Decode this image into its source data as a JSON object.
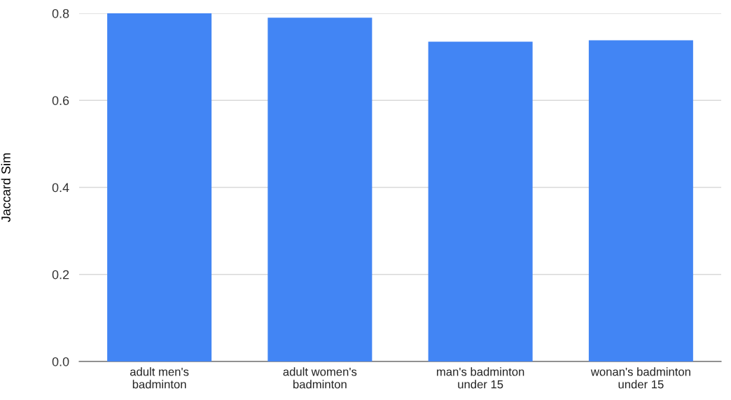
{
  "chart_data": {
    "type": "bar",
    "ylabel": "Jaccard Sim",
    "categories": [
      "adult men's\nbadminton",
      "adult women's\nbadminton",
      "man's badminton\nunder 15",
      "wonan's badminton\nunder 15"
    ],
    "values": [
      0.8,
      0.79,
      0.735,
      0.738
    ],
    "color": "#4285f4",
    "ylim": [
      0,
      0.8
    ],
    "yticks": [
      {
        "value": 0,
        "label": "0.0"
      },
      {
        "value": 0.2,
        "label": "0.2"
      },
      {
        "value": 0.4,
        "label": "0.4"
      },
      {
        "value": 0.6,
        "label": "0.6"
      },
      {
        "value": 0.8,
        "label": "0.8"
      }
    ],
    "grid": "y"
  }
}
